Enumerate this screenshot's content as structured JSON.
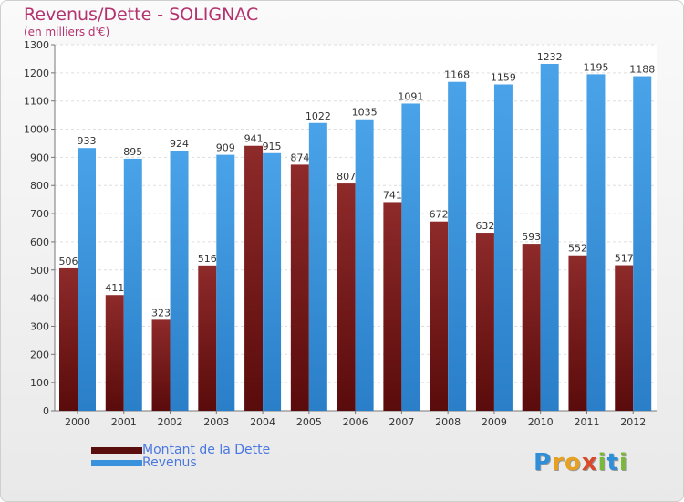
{
  "header": {
    "title": "Revenus/Dette - SOLIGNAC",
    "subtitle": "(en milliers d'€)"
  },
  "chart_data": {
    "type": "bar",
    "title": "Revenus/Dette - SOLIGNAC",
    "subtitle": "(en milliers d'€)",
    "xlabel": "",
    "ylabel": "",
    "categories": [
      "2000",
      "2001",
      "2002",
      "2003",
      "2004",
      "2005",
      "2006",
      "2007",
      "2008",
      "2009",
      "2010",
      "2011",
      "2012"
    ],
    "series": [
      {
        "name": "Montant de la Dette",
        "color": "#7a1c1c",
        "values": [
          506,
          411,
          323,
          516,
          941,
          874,
          807,
          741,
          672,
          632,
          593,
          552,
          517
        ]
      },
      {
        "name": "Revenus",
        "color": "#3a92dc",
        "values": [
          933,
          895,
          924,
          909,
          915,
          1022,
          1035,
          1091,
          1168,
          1159,
          1232,
          1195,
          1188
        ]
      }
    ],
    "ylim": [
      0,
      1300
    ],
    "yticks": [
      0,
      100,
      200,
      300,
      400,
      500,
      600,
      700,
      800,
      900,
      1000,
      1100,
      1200,
      1300
    ],
    "grid": true,
    "legend_position": "bottom-left"
  },
  "legend": {
    "items": [
      {
        "label": "Montant de la Dette",
        "color": "#5a0e0e"
      },
      {
        "label": "Revenus",
        "color": "#3a92dc"
      }
    ]
  },
  "logo": {
    "letters": [
      {
        "ch": "P",
        "color": "#2e8fd8"
      },
      {
        "ch": "r",
        "color": "#e8a020"
      },
      {
        "ch": "o",
        "color": "#e8a020"
      },
      {
        "ch": "x",
        "color": "#d84a2a"
      },
      {
        "ch": "i",
        "color": "#7ab83a"
      },
      {
        "ch": "t",
        "color": "#2e8fd8"
      },
      {
        "ch": "i",
        "color": "#7ab83a"
      }
    ]
  }
}
